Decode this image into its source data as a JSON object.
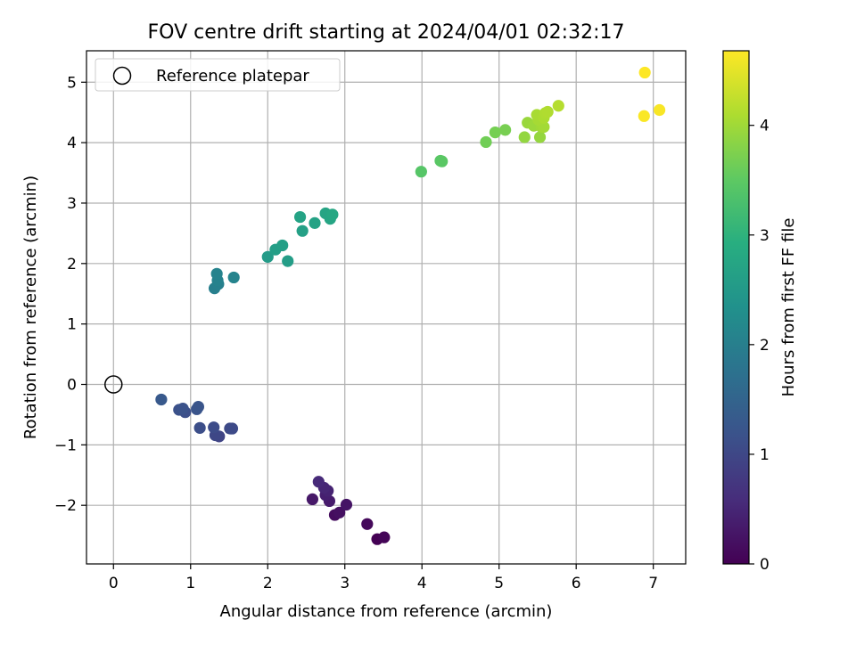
{
  "chart_data": {
    "type": "scatter",
    "title": "FOV centre drift starting at 2024/04/01 02:32:17",
    "xlabel": "Angular distance from reference (arcmin)",
    "ylabel": "Rotation from reference (arcmin)",
    "xlim": [
      -0.35,
      7.42
    ],
    "ylim": [
      -2.97,
      5.52
    ],
    "x_ticks": [
      0,
      1,
      2,
      3,
      4,
      5,
      6,
      7
    ],
    "y_ticks": [
      -2,
      -1,
      0,
      1,
      2,
      3,
      4,
      5
    ],
    "grid": true,
    "legend": {
      "position": "top-left",
      "entries": [
        "Reference platepar"
      ]
    },
    "reference_point": {
      "x": 0,
      "y": 0,
      "label": "Reference platepar"
    },
    "colorbar": {
      "label": "Hours from first FF file",
      "range": [
        0,
        4.68
      ],
      "ticks": [
        0,
        1,
        2,
        3,
        4
      ],
      "colormap": "viridis"
    },
    "points": [
      {
        "x": 3.42,
        "y": -2.56,
        "h": 0.0
      },
      {
        "x": 3.51,
        "y": -2.53,
        "h": 0.05
      },
      {
        "x": 3.29,
        "y": -2.31,
        "h": 0.1
      },
      {
        "x": 2.87,
        "y": -2.16,
        "h": 0.15
      },
      {
        "x": 2.93,
        "y": -2.12,
        "h": 0.2
      },
      {
        "x": 3.02,
        "y": -1.99,
        "h": 0.25
      },
      {
        "x": 2.58,
        "y": -1.9,
        "h": 0.3
      },
      {
        "x": 2.8,
        "y": -1.93,
        "h": 0.35
      },
      {
        "x": 2.75,
        "y": -1.83,
        "h": 0.4
      },
      {
        "x": 2.78,
        "y": -1.76,
        "h": 0.45
      },
      {
        "x": 2.73,
        "y": -1.71,
        "h": 0.5
      },
      {
        "x": 2.66,
        "y": -1.61,
        "h": 0.55
      },
      {
        "x": 1.37,
        "y": -0.86,
        "h": 0.95
      },
      {
        "x": 1.32,
        "y": -0.84,
        "h": 1.0
      },
      {
        "x": 1.51,
        "y": -0.73,
        "h": 1.02
      },
      {
        "x": 1.54,
        "y": -0.73,
        "h": 1.05
      },
      {
        "x": 1.3,
        "y": -0.71,
        "h": 1.08
      },
      {
        "x": 1.12,
        "y": -0.72,
        "h": 1.1
      },
      {
        "x": 0.93,
        "y": -0.46,
        "h": 1.12
      },
      {
        "x": 0.85,
        "y": -0.42,
        "h": 1.15
      },
      {
        "x": 0.9,
        "y": -0.4,
        "h": 1.18
      },
      {
        "x": 1.08,
        "y": -0.41,
        "h": 1.2
      },
      {
        "x": 1.1,
        "y": -0.37,
        "h": 1.22
      },
      {
        "x": 0.62,
        "y": -0.25,
        "h": 1.3
      },
      {
        "x": 1.31,
        "y": 1.59,
        "h": 2.0
      },
      {
        "x": 1.36,
        "y": 1.66,
        "h": 2.02
      },
      {
        "x": 1.35,
        "y": 1.72,
        "h": 2.05
      },
      {
        "x": 1.34,
        "y": 1.83,
        "h": 2.08
      },
      {
        "x": 1.56,
        "y": 1.77,
        "h": 2.1
      },
      {
        "x": 2.0,
        "y": 2.11,
        "h": 2.55
      },
      {
        "x": 2.26,
        "y": 2.04,
        "h": 2.58
      },
      {
        "x": 2.1,
        "y": 2.23,
        "h": 2.6
      },
      {
        "x": 2.19,
        "y": 2.3,
        "h": 2.62
      },
      {
        "x": 2.45,
        "y": 2.54,
        "h": 2.65
      },
      {
        "x": 2.61,
        "y": 2.67,
        "h": 2.68
      },
      {
        "x": 2.42,
        "y": 2.77,
        "h": 2.7
      },
      {
        "x": 2.75,
        "y": 2.83,
        "h": 2.72
      },
      {
        "x": 2.81,
        "y": 2.74,
        "h": 2.75
      },
      {
        "x": 2.84,
        "y": 2.81,
        "h": 2.78
      },
      {
        "x": 3.99,
        "y": 3.52,
        "h": 3.42
      },
      {
        "x": 4.24,
        "y": 3.7,
        "h": 3.45
      },
      {
        "x": 4.26,
        "y": 3.69,
        "h": 3.47
      },
      {
        "x": 4.83,
        "y": 4.01,
        "h": 3.65
      },
      {
        "x": 4.95,
        "y": 4.17,
        "h": 3.68
      },
      {
        "x": 5.08,
        "y": 4.21,
        "h": 3.7
      },
      {
        "x": 5.33,
        "y": 4.09,
        "h": 3.9
      },
      {
        "x": 5.53,
        "y": 4.09,
        "h": 3.92
      },
      {
        "x": 5.37,
        "y": 4.33,
        "h": 3.95
      },
      {
        "x": 5.45,
        "y": 4.28,
        "h": 3.97
      },
      {
        "x": 5.55,
        "y": 4.26,
        "h": 4.0
      },
      {
        "x": 5.58,
        "y": 4.26,
        "h": 4.02
      },
      {
        "x": 5.51,
        "y": 4.38,
        "h": 4.04
      },
      {
        "x": 5.49,
        "y": 4.46,
        "h": 4.06
      },
      {
        "x": 5.58,
        "y": 4.41,
        "h": 4.08
      },
      {
        "x": 5.6,
        "y": 4.49,
        "h": 4.1
      },
      {
        "x": 5.63,
        "y": 4.51,
        "h": 4.12
      },
      {
        "x": 5.77,
        "y": 4.61,
        "h": 4.15
      },
      {
        "x": 6.89,
        "y": 5.16,
        "h": 4.68
      },
      {
        "x": 6.88,
        "y": 4.44,
        "h": 4.66
      },
      {
        "x": 7.08,
        "y": 4.54,
        "h": 4.64
      }
    ]
  }
}
